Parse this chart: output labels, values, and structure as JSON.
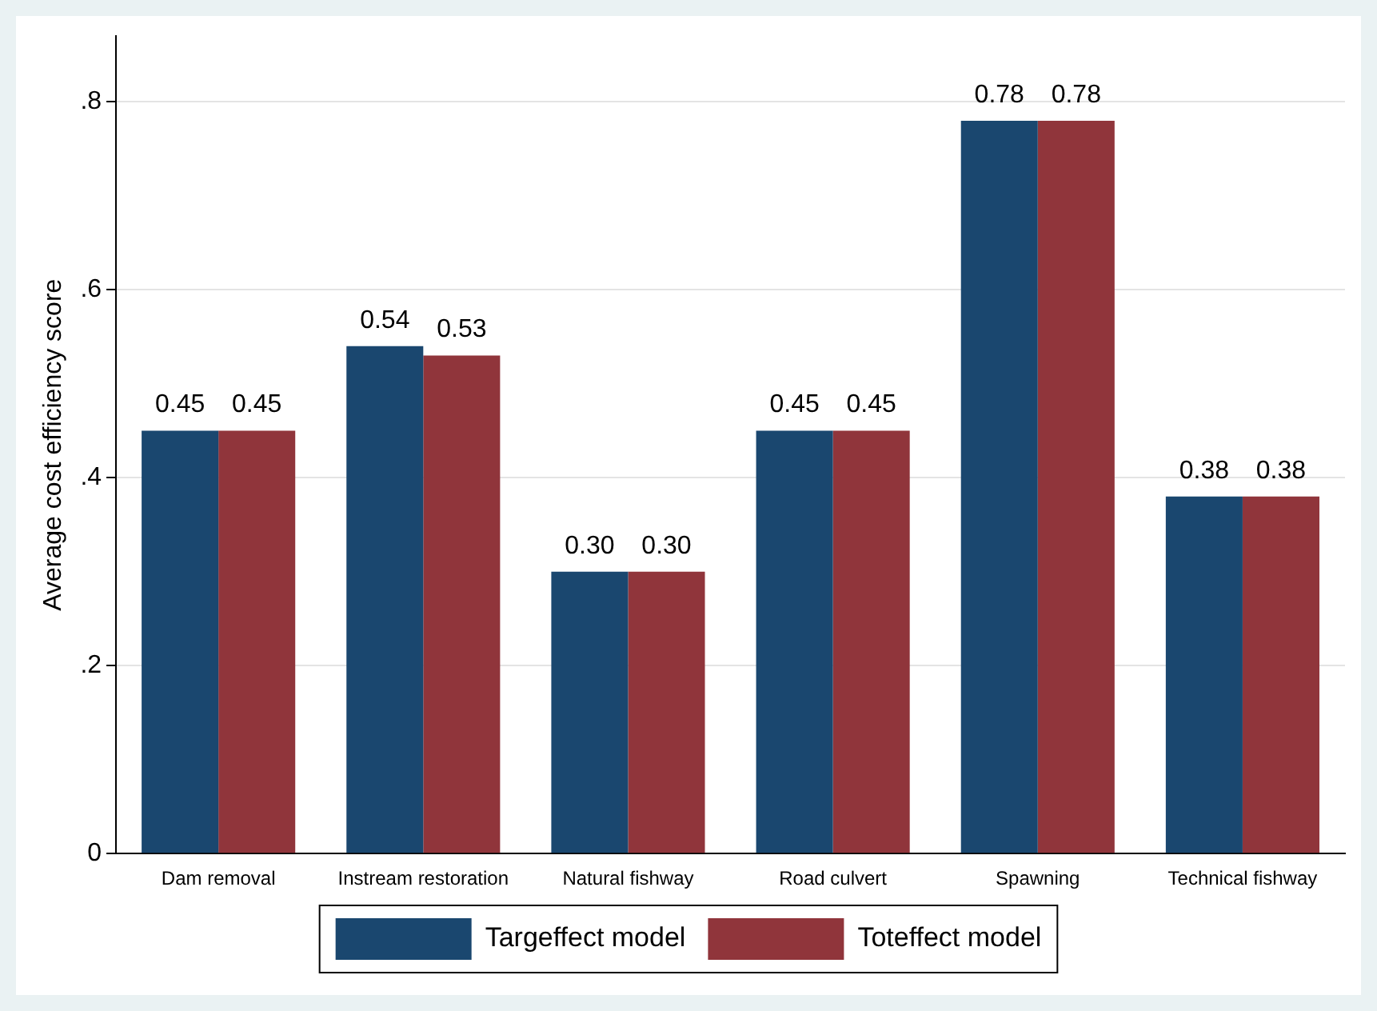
{
  "chart_data": {
    "type": "bar",
    "ylabel": "Average cost efficiency score",
    "categories": [
      "Dam removal",
      "Instream restoration",
      "Natural fishway",
      "Road culvert",
      "Spawning",
      "Technical fishway"
    ],
    "series": [
      {
        "name": "Targeffect model",
        "color": "#1a476f",
        "values": [
          0.45,
          0.54,
          0.3,
          0.45,
          0.78,
          0.38
        ],
        "value_labels": [
          "0.45",
          "0.54",
          "0.30",
          "0.45",
          "0.78",
          "0.38"
        ]
      },
      {
        "name": "Toteffect model",
        "color": "#90353b",
        "values": [
          0.45,
          0.53,
          0.3,
          0.45,
          0.78,
          0.38
        ],
        "value_labels": [
          "0.45",
          "0.53",
          "0.30",
          "0.45",
          "0.78",
          "0.38"
        ]
      }
    ],
    "ylim": [
      0,
      0.87
    ],
    "yticks": [
      0,
      {
        "value": 0.2,
        "label": ".2"
      },
      {
        "value": 0.4,
        "label": ".4"
      },
      {
        "value": 0.6,
        "label": ".6"
      },
      {
        "value": 0.8,
        "label": ".8"
      }
    ],
    "grid": "y",
    "legend": "bottom"
  }
}
